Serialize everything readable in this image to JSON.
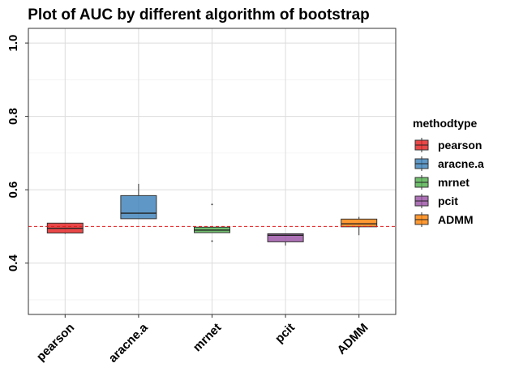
{
  "chart_data": {
    "type": "boxplot",
    "title": "Plot of AUC by different algorithm of bootstrap",
    "xlabel": "",
    "ylabel": "",
    "categories": [
      "pearson",
      "aracne.a",
      "mrnet",
      "pcit",
      "ADMM"
    ],
    "ylim": [
      0.26,
      1.04
    ],
    "yticks": [
      0.4,
      0.6,
      0.8,
      1.0
    ],
    "ytick_labels": [
      "0.4",
      "0.6",
      "0.8",
      "1.0"
    ],
    "reference_line": {
      "y": 0.5,
      "style": "dashed",
      "color": "#E41A1C"
    },
    "legend": {
      "title": "methodtype",
      "position": "right"
    },
    "grid": true,
    "boxes": [
      {
        "name": "pearson",
        "color": "#E41A1C",
        "whisker_low": 0.48,
        "q1": 0.482,
        "median": 0.495,
        "q3": 0.509,
        "whisker_high": 0.509,
        "outliers": []
      },
      {
        "name": "aracne.a",
        "color": "#377EB8",
        "whisker_low": 0.521,
        "q1": 0.521,
        "median": 0.536,
        "q3": 0.584,
        "whisker_high": 0.616,
        "outliers": []
      },
      {
        "name": "mrnet",
        "color": "#4DAF4A",
        "whisker_low": 0.483,
        "q1": 0.483,
        "median": 0.49,
        "q3": 0.498,
        "whisker_high": 0.498,
        "outliers": [
          0.46,
          0.56
        ]
      },
      {
        "name": "pcit",
        "color": "#984EA3",
        "whisker_low": 0.448,
        "q1": 0.458,
        "median": 0.476,
        "q3": 0.48,
        "whisker_high": 0.48,
        "outliers": []
      },
      {
        "name": "ADMM",
        "color": "#FF7F00",
        "whisker_low": 0.476,
        "q1": 0.499,
        "median": 0.507,
        "q3": 0.52,
        "whisker_high": 0.526,
        "outliers": []
      }
    ]
  }
}
